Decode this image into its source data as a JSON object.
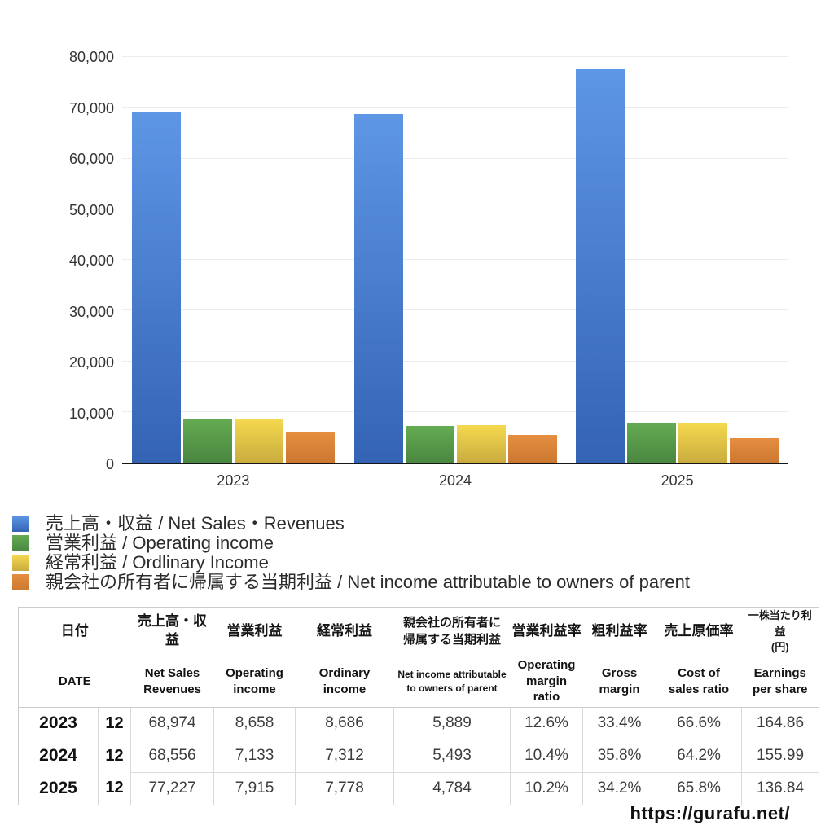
{
  "chart_data": {
    "type": "bar",
    "title": "",
    "categories": [
      "2023",
      "2024",
      "2025"
    ],
    "series": [
      {
        "name": "売上高・収益 / Net Sales・Revenues",
        "values": [
          68974,
          68556,
          77227
        ],
        "color_top": "#5e96e6",
        "color_bottom": "#3463b4"
      },
      {
        "name": "営業利益 / Operating income",
        "values": [
          8658,
          7133,
          7915
        ],
        "color_top": "#64ab52",
        "color_bottom": "#4a8740"
      },
      {
        "name": "経常利益 / Ordlinary Income",
        "values": [
          8686,
          7312,
          7778
        ],
        "color_top": "#f5d94f",
        "color_bottom": "#c9ac3e"
      },
      {
        "name": "親会社の所有者に帰属する当期利益 / Net income attributable to owners of parent",
        "values": [
          5889,
          5493,
          4784
        ],
        "color_top": "#e58e40",
        "color_bottom": "#cc7831"
      }
    ],
    "ylim": [
      0,
      80000
    ],
    "yticks": [
      {
        "value": 0,
        "label": "0"
      },
      {
        "value": 10000,
        "label": "10,000"
      },
      {
        "value": 20000,
        "label": "20,000"
      },
      {
        "value": 30000,
        "label": "30,000"
      },
      {
        "value": 40000,
        "label": "40,000"
      },
      {
        "value": 50000,
        "label": "50,000"
      },
      {
        "value": 60000,
        "label": "60,000"
      },
      {
        "value": 70000,
        "label": "70,000"
      },
      {
        "value": 80000,
        "label": "80,000"
      }
    ],
    "grid": true,
    "legend_position": "bottom-left",
    "gridline_color": "#ececec",
    "axis_color": "#161616"
  },
  "table": {
    "header_jp": [
      "日付",
      "売上高・収益",
      "営業利益",
      "経常利益",
      "親会社の所有者に\n帰属する当期利益",
      "営業利益率",
      "粗利益率",
      "売上原価率",
      "一株当たり利益\n(円)"
    ],
    "header_en": [
      "DATE",
      "Net Sales\nRevenues",
      "Operating\nincome",
      "Ordinary\nincome",
      "Net income attributable\nto owners of parent",
      "Operating\nmargin\nratio",
      "Gross\nmargin",
      "Cost of\nsales ratio",
      "Earnings\nper share"
    ],
    "rows": [
      {
        "year": "2023",
        "month": "12",
        "values": [
          "68,974",
          "8,658",
          "8,686",
          "5,889",
          "12.6%",
          "33.4%",
          "66.6%",
          "164.86"
        ]
      },
      {
        "year": "2024",
        "month": "12",
        "values": [
          "68,556",
          "7,133",
          "7,312",
          "5,493",
          "10.4%",
          "35.8%",
          "64.2%",
          "155.99"
        ]
      },
      {
        "year": "2025",
        "month": "12",
        "values": [
          "77,227",
          "7,915",
          "7,778",
          "4,784",
          "10.2%",
          "34.2%",
          "65.8%",
          "136.84"
        ]
      }
    ]
  },
  "footer": {
    "url": "https://gurafu.net/"
  }
}
